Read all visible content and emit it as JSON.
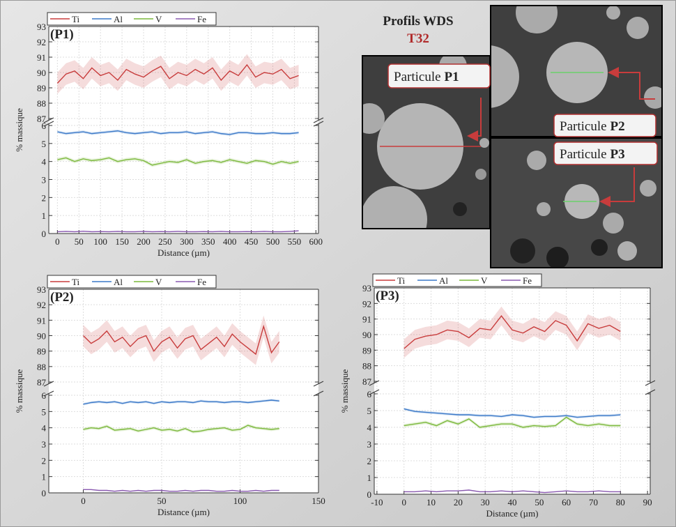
{
  "header": {
    "title": "Profils WDS",
    "sample": "T32"
  },
  "images": [
    {
      "text": "Particule",
      "id": "P1"
    },
    {
      "text": "Particule",
      "id": "P2"
    },
    {
      "text": "Particule",
      "id": "P3"
    }
  ],
  "chart_data": [
    {
      "type": "line",
      "annotation": "(P1)",
      "x_label": "Distance (µm)",
      "y_label": "% massique",
      "grid": true,
      "xlim": [
        -20,
        606
      ],
      "xticks": [
        0,
        50,
        100,
        150,
        200,
        250,
        300,
        350,
        400,
        450,
        500,
        550,
        600
      ],
      "ylim": [
        0,
        93
      ],
      "ybreak": [
        6,
        87
      ],
      "yticks": [
        0,
        1,
        2,
        3,
        4,
        5,
        6,
        87,
        88,
        89,
        90,
        91,
        92,
        93
      ],
      "x": [
        0,
        20,
        40,
        60,
        80,
        100,
        120,
        140,
        160,
        180,
        200,
        220,
        240,
        260,
        280,
        300,
        320,
        340,
        360,
        380,
        400,
        420,
        440,
        460,
        480,
        500,
        520,
        540,
        560
      ],
      "series": [
        {
          "name": "Ti",
          "color": "#c83c3c",
          "error": 0.7,
          "values": [
            89.3,
            89.9,
            90.1,
            89.6,
            90.3,
            89.8,
            90.0,
            89.5,
            90.2,
            89.9,
            89.7,
            90.1,
            90.4,
            89.6,
            90.0,
            89.8,
            90.2,
            89.9,
            90.3,
            89.5,
            90.1,
            89.8,
            90.5,
            89.7,
            90.0,
            89.9,
            90.2,
            89.6,
            89.8
          ]
        },
        {
          "name": "Al",
          "color": "#3a78c8",
          "error": 0.08,
          "values": [
            5.65,
            5.55,
            5.6,
            5.65,
            5.55,
            5.6,
            5.65,
            5.7,
            5.6,
            5.55,
            5.6,
            5.65,
            5.55,
            5.6,
            5.6,
            5.65,
            5.55,
            5.6,
            5.65,
            5.55,
            5.5,
            5.6,
            5.6,
            5.55,
            5.55,
            5.6,
            5.55,
            5.55,
            5.6
          ]
        },
        {
          "name": "V",
          "color": "#7ab83a",
          "error": 0.1,
          "values": [
            4.1,
            4.2,
            4.0,
            4.15,
            4.05,
            4.1,
            4.2,
            4.0,
            4.1,
            4.15,
            4.05,
            3.8,
            3.9,
            4.0,
            3.95,
            4.1,
            3.9,
            4.0,
            4.05,
            3.95,
            4.1,
            4.0,
            3.9,
            4.05,
            4.0,
            3.85,
            4.0,
            3.9,
            4.0
          ]
        },
        {
          "name": "Fe",
          "color": "#8a5ab0",
          "error": 0.03,
          "values": [
            0.1,
            0.12,
            0.1,
            0.13,
            0.1,
            0.11,
            0.1,
            0.12,
            0.1,
            0.1,
            0.12,
            0.1,
            0.11,
            0.1,
            0.12,
            0.1,
            0.1,
            0.11,
            0.1,
            0.12,
            0.1,
            0.1,
            0.11,
            0.1,
            0.12,
            0.1,
            0.1,
            0.12,
            0.15
          ]
        }
      ]
    },
    {
      "type": "line",
      "annotation": "(P2)",
      "x_label": "Distance (µm)",
      "y_label": "% massique",
      "grid": true,
      "xlim": [
        -22,
        150
      ],
      "xticks": [
        0,
        50,
        100,
        150
      ],
      "ylim": [
        0,
        93
      ],
      "ybreak": [
        6,
        87
      ],
      "yticks": [
        0,
        1,
        2,
        3,
        4,
        5,
        6,
        87,
        88,
        89,
        90,
        91,
        92,
        93
      ],
      "x": [
        0,
        5,
        10,
        15,
        20,
        25,
        30,
        35,
        40,
        45,
        50,
        55,
        60,
        65,
        70,
        75,
        80,
        85,
        90,
        95,
        100,
        105,
        110,
        115,
        120,
        125
      ],
      "series": [
        {
          "name": "Ti",
          "color": "#c83c3c",
          "error": 0.7,
          "values": [
            90.0,
            89.5,
            89.8,
            90.3,
            89.6,
            89.9,
            89.3,
            89.8,
            90.0,
            89.0,
            89.6,
            89.9,
            89.2,
            89.8,
            90.0,
            89.1,
            89.5,
            89.9,
            89.3,
            90.1,
            89.6,
            89.2,
            88.8,
            90.6,
            88.9,
            89.6
          ]
        },
        {
          "name": "Al",
          "color": "#3a78c8",
          "error": 0.08,
          "values": [
            5.45,
            5.55,
            5.6,
            5.55,
            5.6,
            5.5,
            5.6,
            5.55,
            5.6,
            5.5,
            5.6,
            5.55,
            5.6,
            5.6,
            5.55,
            5.65,
            5.6,
            5.6,
            5.55,
            5.6,
            5.6,
            5.55,
            5.6,
            5.65,
            5.7,
            5.65
          ]
        },
        {
          "name": "V",
          "color": "#7ab83a",
          "error": 0.1,
          "values": [
            3.9,
            4.0,
            3.95,
            4.1,
            3.85,
            3.9,
            3.95,
            3.8,
            3.9,
            4.0,
            3.85,
            3.9,
            3.8,
            3.95,
            3.75,
            3.8,
            3.9,
            3.95,
            4.0,
            3.85,
            3.9,
            4.15,
            4.0,
            3.95,
            3.9,
            3.95
          ]
        },
        {
          "name": "Fe",
          "color": "#8a5ab0",
          "error": 0.03,
          "values": [
            0.2,
            0.2,
            0.15,
            0.15,
            0.1,
            0.15,
            0.1,
            0.15,
            0.1,
            0.15,
            0.15,
            0.1,
            0.1,
            0.15,
            0.1,
            0.15,
            0.15,
            0.1,
            0.1,
            0.15,
            0.1,
            0.1,
            0.15,
            0.1,
            0.15,
            0.15
          ]
        }
      ]
    },
    {
      "type": "line",
      "annotation": "(P3)",
      "x_label": "Distance (µm)",
      "y_label": "% massique",
      "grid": true,
      "xlim": [
        -11,
        91
      ],
      "xticks": [
        -10,
        0,
        10,
        20,
        30,
        40,
        50,
        60,
        70,
        80,
        90
      ],
      "ylim": [
        0,
        93
      ],
      "ybreak": [
        6,
        87
      ],
      "yticks": [
        0,
        1,
        2,
        3,
        4,
        5,
        6,
        87,
        88,
        89,
        90,
        91,
        92,
        93
      ],
      "x": [
        0,
        4,
        8,
        12,
        16,
        20,
        24,
        28,
        32,
        36,
        40,
        44,
        48,
        52,
        56,
        60,
        64,
        68,
        72,
        76,
        80
      ],
      "series": [
        {
          "name": "Ti",
          "color": "#c83c3c",
          "error": 0.6,
          "values": [
            89.1,
            89.7,
            89.9,
            90.0,
            90.3,
            90.2,
            89.8,
            90.4,
            90.3,
            91.2,
            90.3,
            90.1,
            90.5,
            90.2,
            90.9,
            90.6,
            89.6,
            90.7,
            90.4,
            90.6,
            90.2
          ]
        },
        {
          "name": "Al",
          "color": "#3a78c8",
          "error": 0.08,
          "values": [
            5.1,
            4.95,
            4.9,
            4.85,
            4.8,
            4.75,
            4.75,
            4.7,
            4.7,
            4.65,
            4.75,
            4.7,
            4.6,
            4.65,
            4.65,
            4.7,
            4.6,
            4.65,
            4.7,
            4.7,
            4.75
          ]
        },
        {
          "name": "V",
          "color": "#7ab83a",
          "error": 0.1,
          "values": [
            4.1,
            4.2,
            4.3,
            4.1,
            4.4,
            4.2,
            4.5,
            4.0,
            4.1,
            4.2,
            4.2,
            4.0,
            4.1,
            4.05,
            4.1,
            4.6,
            4.2,
            4.1,
            4.2,
            4.1,
            4.1
          ]
        },
        {
          "name": "Fe",
          "color": "#8a5ab0",
          "error": 0.03,
          "values": [
            0.15,
            0.15,
            0.2,
            0.15,
            0.2,
            0.2,
            0.25,
            0.15,
            0.15,
            0.2,
            0.15,
            0.2,
            0.15,
            0.1,
            0.15,
            0.2,
            0.15,
            0.15,
            0.2,
            0.15,
            0.15
          ]
        }
      ]
    }
  ]
}
